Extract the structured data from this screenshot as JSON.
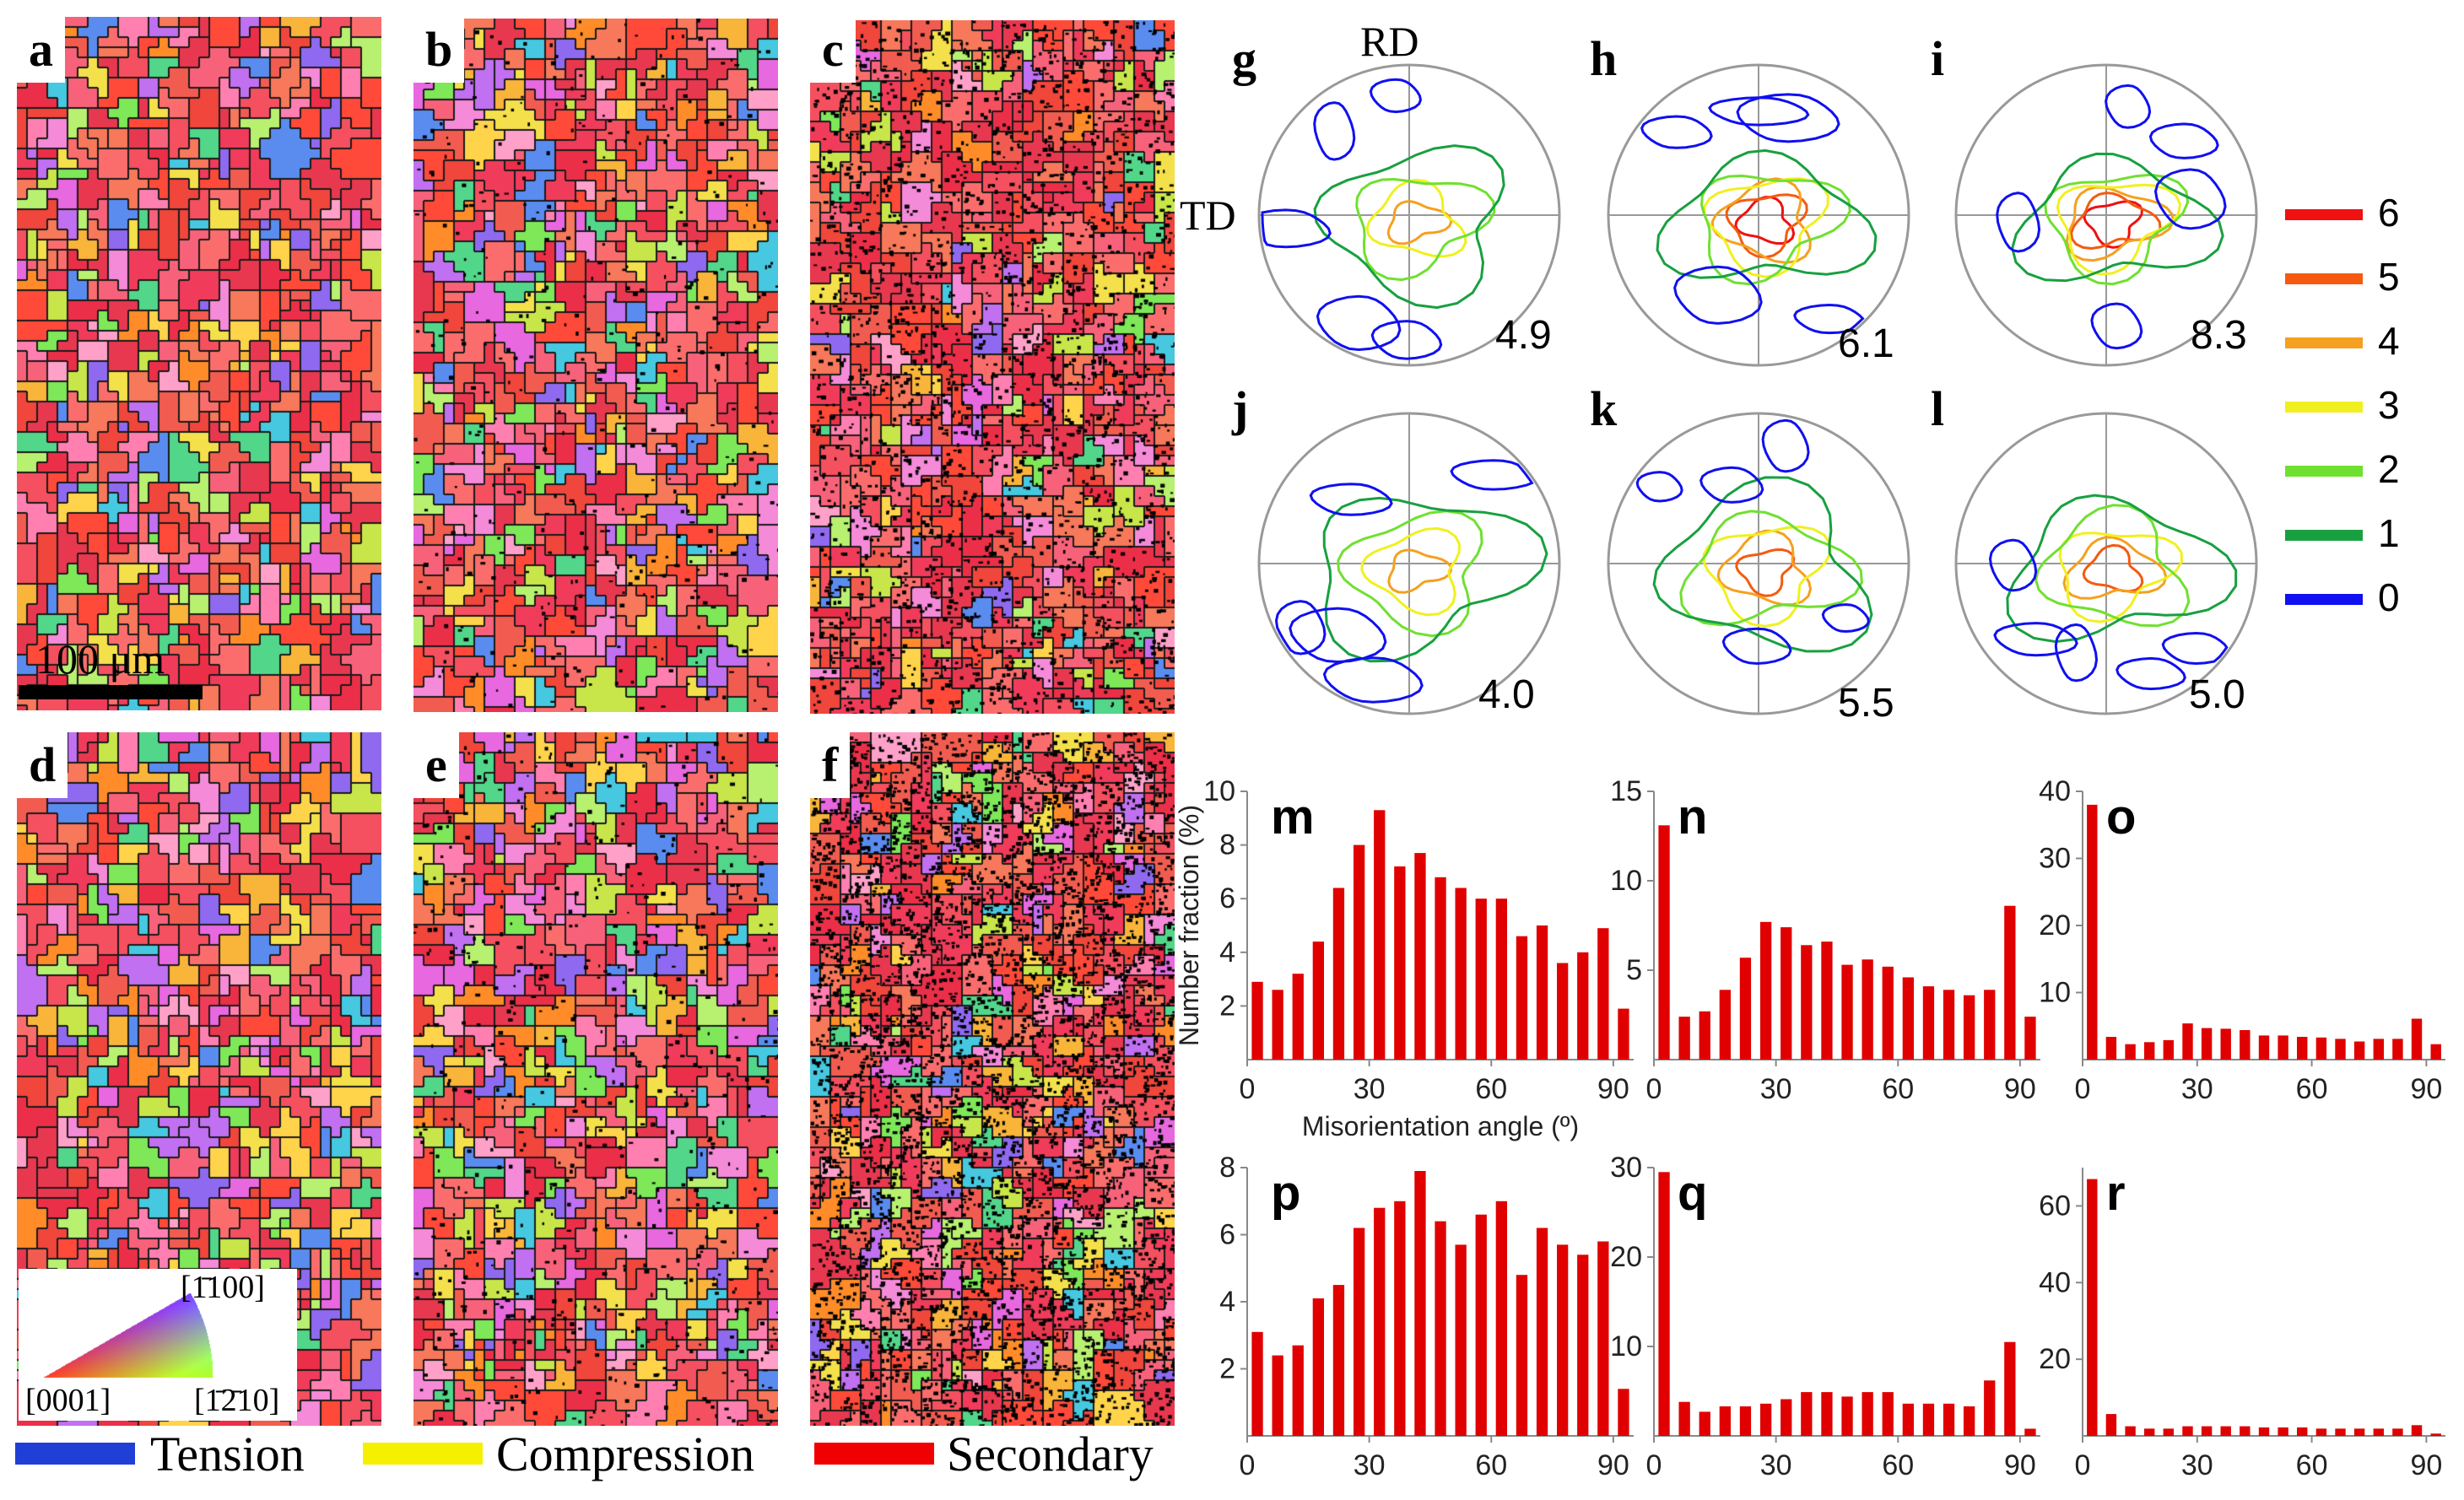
{
  "ebsd_maps": [
    {
      "label": "a",
      "seed": 11,
      "redness": 0.62,
      "dark": 0.0
    },
    {
      "label": "b",
      "seed": 23,
      "redness": 0.58,
      "dark": 0.05
    },
    {
      "label": "c",
      "seed": 37,
      "redness": 0.75,
      "dark": 0.28
    },
    {
      "label": "d",
      "seed": 41,
      "redness": 0.55,
      "dark": 0.0
    },
    {
      "label": "e",
      "seed": 53,
      "redness": 0.5,
      "dark": 0.08
    },
    {
      "label": "f",
      "seed": 67,
      "redness": 0.68,
      "dark": 0.55
    }
  ],
  "scale_bar": {
    "label": "100 μm"
  },
  "ipf_key": {
    "top": "[̄ 1100]",
    "left": "[0001]",
    "right": "[̄ 12̄ 10]"
  },
  "ipf_key_display": {
    "top": "[1̄100]",
    "left": "[0001]",
    "right": "[1̄2̄10]"
  },
  "boundary_legend": [
    {
      "name": "Tension",
      "color": "#1f3fd6"
    },
    {
      "name": "Compression",
      "color": "#f5f000"
    },
    {
      "name": "Secondary",
      "color": "#f00000"
    }
  ],
  "pole_figures": {
    "axis_labels": {
      "rd": "RD",
      "td": "TD"
    },
    "panels": [
      {
        "label": "g",
        "max": "4.9",
        "levels": 4,
        "seed": 3,
        "spread": 1.0
      },
      {
        "label": "h",
        "max": "6.1",
        "levels": 6,
        "seed": 5,
        "spread": 0.85
      },
      {
        "label": "i",
        "max": "8.3",
        "levels": 6,
        "seed": 7,
        "spread": 0.8
      },
      {
        "label": "j",
        "max": "4.0",
        "levels": 4,
        "seed": 9,
        "spread": 1.2
      },
      {
        "label": "k",
        "max": "5.5",
        "levels": 5,
        "seed": 13,
        "spread": 1.1
      },
      {
        "label": "l",
        "max": "5.0",
        "levels": 5,
        "seed": 17,
        "spread": 1.0
      }
    ],
    "legend": [
      {
        "value": "6",
        "color": "#f01010"
      },
      {
        "value": "5",
        "color": "#f55a10"
      },
      {
        "value": "4",
        "color": "#f5a020"
      },
      {
        "value": "3",
        "color": "#f0f020"
      },
      {
        "value": "2",
        "color": "#70e030"
      },
      {
        "value": "1",
        "color": "#18a040"
      },
      {
        "value": "0",
        "color": "#1010f0"
      }
    ]
  },
  "chart_data": [
    {
      "type": "bar",
      "label": "m",
      "ylabel": "Number fraction (%)",
      "xlabel": "Misorientation angle (º)",
      "xticks": [
        0,
        30,
        60,
        90
      ],
      "yticks": [
        2,
        4,
        6,
        8,
        10
      ],
      "ylim": [
        0,
        10
      ],
      "xlim": [
        0,
        95
      ],
      "x": [
        2.5,
        7.5,
        12.5,
        17.5,
        22.5,
        27.5,
        32.5,
        37.5,
        42.5,
        47.5,
        52.5,
        57.5,
        62.5,
        67.5,
        72.5,
        77.5,
        82.5,
        87.5,
        92.5
      ],
      "values": [
        2.9,
        2.6,
        3.2,
        4.4,
        6.4,
        8.0,
        9.3,
        7.2,
        7.7,
        6.8,
        6.4,
        6.0,
        6.0,
        4.6,
        5.0,
        3.6,
        4.0,
        4.9,
        1.9
      ]
    },
    {
      "type": "bar",
      "label": "n",
      "ylabel": "",
      "xlabel": "",
      "xticks": [
        0,
        30,
        60,
        90
      ],
      "yticks": [
        5,
        10,
        15
      ],
      "ylim": [
        0,
        15
      ],
      "xlim": [
        0,
        95
      ],
      "x": [
        2.5,
        7.5,
        12.5,
        17.5,
        22.5,
        27.5,
        32.5,
        37.5,
        42.5,
        47.5,
        52.5,
        57.5,
        62.5,
        67.5,
        72.5,
        77.5,
        82.5,
        87.5,
        92.5
      ],
      "values": [
        13.1,
        2.4,
        2.7,
        3.9,
        5.7,
        7.7,
        7.4,
        6.4,
        6.6,
        5.3,
        5.6,
        5.2,
        4.6,
        4.1,
        3.9,
        3.6,
        3.9,
        8.6,
        2.4
      ]
    },
    {
      "type": "bar",
      "label": "o",
      "ylabel": "",
      "xlabel": "",
      "xticks": [
        0,
        30,
        60,
        90
      ],
      "yticks": [
        10,
        20,
        30,
        40
      ],
      "ylim": [
        0,
        40
      ],
      "xlim": [
        0,
        95
      ],
      "x": [
        2.5,
        7.5,
        12.5,
        17.5,
        22.5,
        27.5,
        32.5,
        37.5,
        42.5,
        47.5,
        52.5,
        57.5,
        62.5,
        67.5,
        72.5,
        77.5,
        82.5,
        87.5,
        92.5
      ],
      "values": [
        38.0,
        3.4,
        2.3,
        2.6,
        2.9,
        5.4,
        4.7,
        4.6,
        4.4,
        3.6,
        3.6,
        3.4,
        3.3,
        3.1,
        2.7,
        3.1,
        3.1,
        6.1,
        2.3
      ]
    },
    {
      "type": "bar",
      "label": "p",
      "ylabel": "",
      "xlabel": "",
      "xticks": [
        0,
        30,
        60,
        90
      ],
      "yticks": [
        2,
        4,
        6,
        8
      ],
      "ylim": [
        0,
        8
      ],
      "xlim": [
        0,
        95
      ],
      "x": [
        2.5,
        7.5,
        12.5,
        17.5,
        22.5,
        27.5,
        32.5,
        37.5,
        42.5,
        47.5,
        52.5,
        57.5,
        62.5,
        67.5,
        72.5,
        77.5,
        82.5,
        87.5,
        92.5
      ],
      "values": [
        3.1,
        2.4,
        2.7,
        4.1,
        4.5,
        6.2,
        6.8,
        7.0,
        7.9,
        6.4,
        5.7,
        6.6,
        7.0,
        4.8,
        6.2,
        5.7,
        5.4,
        5.8,
        1.4
      ]
    },
    {
      "type": "bar",
      "label": "q",
      "ylabel": "",
      "xlabel": "",
      "xticks": [
        0,
        30,
        60,
        90
      ],
      "yticks": [
        10,
        20,
        30
      ],
      "ylim": [
        0,
        30
      ],
      "xlim": [
        0,
        95
      ],
      "x": [
        2.5,
        7.5,
        12.5,
        17.5,
        22.5,
        27.5,
        32.5,
        37.5,
        42.5,
        47.5,
        52.5,
        57.5,
        62.5,
        67.5,
        72.5,
        77.5,
        82.5,
        87.5,
        92.5
      ],
      "values": [
        29.5,
        3.8,
        2.7,
        3.3,
        3.3,
        3.6,
        4.1,
        4.9,
        4.9,
        4.4,
        4.9,
        4.9,
        3.6,
        3.6,
        3.6,
        3.3,
        6.2,
        10.5,
        0.8
      ]
    },
    {
      "type": "bar",
      "label": "r",
      "ylabel": "",
      "xlabel": "",
      "xticks": [
        0,
        30,
        60,
        90
      ],
      "yticks": [
        20,
        40,
        60
      ],
      "ylim": [
        0,
        70
      ],
      "xlim": [
        0,
        95
      ],
      "x": [
        2.5,
        7.5,
        12.5,
        17.5,
        22.5,
        27.5,
        32.5,
        37.5,
        42.5,
        47.5,
        52.5,
        57.5,
        62.5,
        67.5,
        72.5,
        77.5,
        82.5,
        87.5,
        92.5
      ],
      "values": [
        67.0,
        5.7,
        2.5,
        1.9,
        1.9,
        2.5,
        2.5,
        2.5,
        2.5,
        2.2,
        2.2,
        2.2,
        1.9,
        1.9,
        1.9,
        1.9,
        1.9,
        2.8,
        0.6
      ]
    }
  ]
}
